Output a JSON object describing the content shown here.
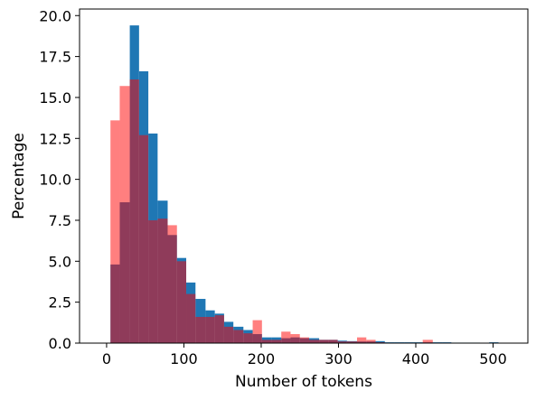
{
  "chart_data": {
    "type": "bar",
    "title": "",
    "xlabel": "Number of tokens",
    "ylabel": "Percentage",
    "xlim": [
      -35,
      545
    ],
    "ylim": [
      0,
      20.4
    ],
    "xticks": [
      0,
      100,
      200,
      300,
      400,
      500
    ],
    "xtick_labels": [
      "0",
      "100",
      "200",
      "300",
      "400",
      "500"
    ],
    "yticks": [
      0,
      2.5,
      5,
      7.5,
      10,
      12.5,
      15,
      17.5,
      20
    ],
    "ytick_labels": [
      "0.0",
      "2.5",
      "5.0",
      "7.5",
      "10.0",
      "12.5",
      "15.0",
      "17.5",
      "20.0"
    ],
    "grid": false,
    "legend": false,
    "series": [
      {
        "color": "#1f77b4",
        "alpha": 1.0,
        "bins": [
          {
            "x0": 5,
            "x1": 17,
            "value": 4.8
          },
          {
            "x0": 17,
            "x1": 30,
            "value": 8.6
          },
          {
            "x0": 30,
            "x1": 42,
            "value": 19.4
          },
          {
            "x0": 42,
            "x1": 54,
            "value": 16.6
          },
          {
            "x0": 54,
            "x1": 66,
            "value": 12.8
          },
          {
            "x0": 66,
            "x1": 79,
            "value": 8.7
          },
          {
            "x0": 79,
            "x1": 91,
            "value": 6.6
          },
          {
            "x0": 91,
            "x1": 103,
            "value": 5.2
          },
          {
            "x0": 103,
            "x1": 115,
            "value": 3.7
          },
          {
            "x0": 115,
            "x1": 128,
            "value": 2.7
          },
          {
            "x0": 128,
            "x1": 140,
            "value": 2.0
          },
          {
            "x0": 140,
            "x1": 152,
            "value": 1.8
          },
          {
            "x0": 152,
            "x1": 164,
            "value": 1.3
          },
          {
            "x0": 164,
            "x1": 177,
            "value": 1.0
          },
          {
            "x0": 177,
            "x1": 189,
            "value": 0.8
          },
          {
            "x0": 189,
            "x1": 201,
            "value": 0.55
          },
          {
            "x0": 201,
            "x1": 213,
            "value": 0.35
          },
          {
            "x0": 213,
            "x1": 226,
            "value": 0.35
          },
          {
            "x0": 226,
            "x1": 238,
            "value": 0.3
          },
          {
            "x0": 238,
            "x1": 250,
            "value": 0.35
          },
          {
            "x0": 250,
            "x1": 262,
            "value": 0.3
          },
          {
            "x0": 262,
            "x1": 275,
            "value": 0.3
          },
          {
            "x0": 275,
            "x1": 287,
            "value": 0.2
          },
          {
            "x0": 287,
            "x1": 299,
            "value": 0.2
          },
          {
            "x0": 299,
            "x1": 311,
            "value": 0.15
          },
          {
            "x0": 311,
            "x1": 324,
            "value": 0.12
          },
          {
            "x0": 324,
            "x1": 336,
            "value": 0.1
          },
          {
            "x0": 336,
            "x1": 348,
            "value": 0.1
          },
          {
            "x0": 348,
            "x1": 360,
            "value": 0.12
          },
          {
            "x0": 360,
            "x1": 373,
            "value": 0.05
          },
          {
            "x0": 373,
            "x1": 385,
            "value": 0.05
          },
          {
            "x0": 385,
            "x1": 397,
            "value": 0.05
          },
          {
            "x0": 397,
            "x1": 409,
            "value": 0.05
          },
          {
            "x0": 409,
            "x1": 422,
            "value": 0.05
          },
          {
            "x0": 422,
            "x1": 434,
            "value": 0.05
          },
          {
            "x0": 434,
            "x1": 446,
            "value": 0.05
          },
          {
            "x0": 446,
            "x1": 458,
            "value": 0.03
          },
          {
            "x0": 458,
            "x1": 471,
            "value": 0.03
          },
          {
            "x0": 471,
            "x1": 483,
            "value": 0.03
          },
          {
            "x0": 495,
            "x1": 507,
            "value": 0.05
          }
        ]
      },
      {
        "color": "#ff0000",
        "alpha": 0.5,
        "bins": [
          {
            "x0": 5,
            "x1": 17,
            "value": 13.6
          },
          {
            "x0": 17,
            "x1": 30,
            "value": 15.7
          },
          {
            "x0": 30,
            "x1": 42,
            "value": 16.1
          },
          {
            "x0": 42,
            "x1": 54,
            "value": 12.7
          },
          {
            "x0": 54,
            "x1": 66,
            "value": 7.5
          },
          {
            "x0": 66,
            "x1": 79,
            "value": 7.6
          },
          {
            "x0": 79,
            "x1": 91,
            "value": 7.2
          },
          {
            "x0": 91,
            "x1": 103,
            "value": 5.0
          },
          {
            "x0": 103,
            "x1": 115,
            "value": 3.0
          },
          {
            "x0": 115,
            "x1": 128,
            "value": 1.6
          },
          {
            "x0": 128,
            "x1": 140,
            "value": 1.6
          },
          {
            "x0": 140,
            "x1": 152,
            "value": 1.7
          },
          {
            "x0": 152,
            "x1": 164,
            "value": 1.0
          },
          {
            "x0": 164,
            "x1": 177,
            "value": 0.8
          },
          {
            "x0": 177,
            "x1": 189,
            "value": 0.6
          },
          {
            "x0": 189,
            "x1": 201,
            "value": 1.4
          },
          {
            "x0": 201,
            "x1": 213,
            "value": 0.2
          },
          {
            "x0": 213,
            "x1": 226,
            "value": 0.2
          },
          {
            "x0": 226,
            "x1": 238,
            "value": 0.7
          },
          {
            "x0": 238,
            "x1": 250,
            "value": 0.55
          },
          {
            "x0": 250,
            "x1": 262,
            "value": 0.35
          },
          {
            "x0": 262,
            "x1": 275,
            "value": 0.2
          },
          {
            "x0": 275,
            "x1": 287,
            "value": 0.2
          },
          {
            "x0": 287,
            "x1": 299,
            "value": 0.2
          },
          {
            "x0": 299,
            "x1": 311,
            "value": 0.1
          },
          {
            "x0": 311,
            "x1": 324,
            "value": 0.1
          },
          {
            "x0": 324,
            "x1": 336,
            "value": 0.35
          },
          {
            "x0": 336,
            "x1": 348,
            "value": 0.2
          },
          {
            "x0": 348,
            "x1": 360,
            "value": 0.05
          },
          {
            "x0": 409,
            "x1": 422,
            "value": 0.2
          }
        ]
      }
    ]
  }
}
